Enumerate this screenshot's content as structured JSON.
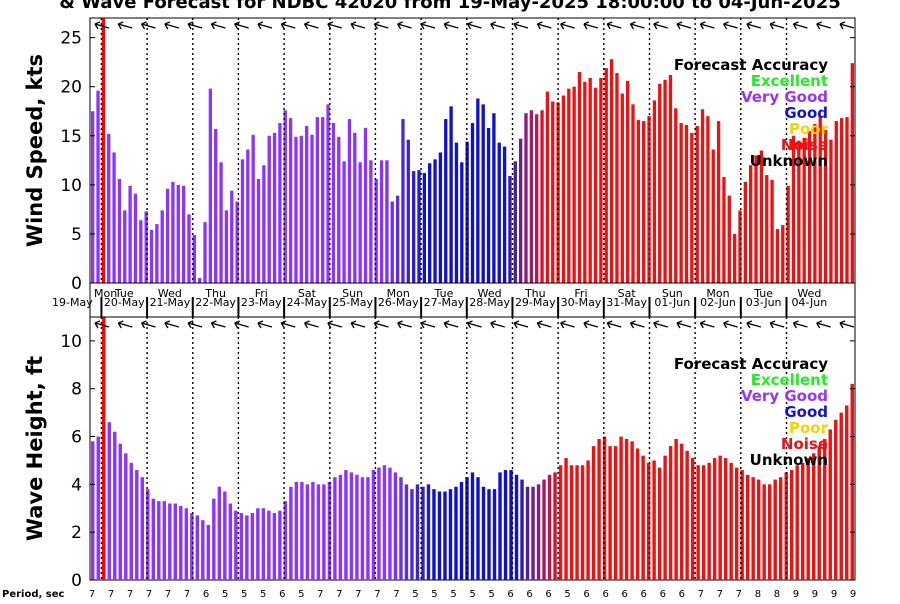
{
  "title": "& Wave Forecast for NDBC 42020 from 19-May-2025 18:00:00 to 04-Jun-2025",
  "day_labels": [
    {
      "dow": "Mon",
      "date": "19-May"
    },
    {
      "dow": "Tue",
      "date": "20-May"
    },
    {
      "dow": "Wed",
      "date": "21-May"
    },
    {
      "dow": "Thu",
      "date": "22-May"
    },
    {
      "dow": "Fri",
      "date": "23-May"
    },
    {
      "dow": "Sat",
      "date": "24-May"
    },
    {
      "dow": "Sun",
      "date": "25-May"
    },
    {
      "dow": "Mon",
      "date": "26-May"
    },
    {
      "dow": "Tue",
      "date": "27-May"
    },
    {
      "dow": "Wed",
      "date": "28-May"
    },
    {
      "dow": "Thu",
      "date": "29-May"
    },
    {
      "dow": "Fri",
      "date": "30-May"
    },
    {
      "dow": "Sat",
      "date": "31-May"
    },
    {
      "dow": "Sun",
      "date": "01-Jun"
    },
    {
      "dow": "Mon",
      "date": "02-Jun"
    },
    {
      "dow": "Tue",
      "date": "03-Jun"
    },
    {
      "dow": "Wed",
      "date": "04-Jun"
    }
  ],
  "legend": {
    "title": "Forecast Accuracy",
    "items": [
      {
        "label": "Excellent",
        "color": "#22ee22"
      },
      {
        "label": "Very Good",
        "color": "#9933ff"
      },
      {
        "label": "Good",
        "color": "#1111dd"
      },
      {
        "label": "Poor",
        "color": "#f2d500"
      },
      {
        "label": "Noise",
        "color": "#ee1111"
      },
      {
        "label": "Unknown",
        "color": "#000000"
      }
    ]
  },
  "period_label": "Period, sec",
  "periods": [
    7,
    7,
    7,
    7,
    7,
    7,
    6,
    5,
    5,
    5,
    6,
    5,
    7,
    7,
    7,
    7,
    7,
    5,
    5,
    5,
    5,
    5,
    6,
    6,
    6,
    5,
    6,
    6,
    6,
    6,
    6,
    6,
    7,
    7,
    7,
    8,
    8,
    9,
    9,
    9,
    9
  ],
  "chart_data": [
    {
      "type": "bar",
      "ylabel": "Wind Speed, kts",
      "ylim": [
        0,
        27
      ],
      "yticks": [
        0,
        5,
        10,
        15,
        20,
        25
      ],
      "grid": "vertical dotted lines at midnight",
      "values": [
        17.5,
        19.6,
        27,
        15.2,
        13.3,
        10.6,
        7.4,
        9.9,
        9.1,
        6.4,
        7.3,
        5.4,
        6.0,
        7.4,
        9.6,
        10.3,
        10.0,
        9.9,
        7.0,
        4.9,
        0.5,
        6.2,
        19.8,
        15.7,
        12.3,
        7.4,
        9.4,
        8.3,
        12.6,
        13.6,
        15.1,
        10.6,
        12.0,
        15.0,
        15.3,
        16.3,
        17.6,
        16.8,
        14.9,
        15.0,
        16.0,
        15.1,
        16.9,
        16.9,
        18.2,
        16.3,
        14.9,
        12.4,
        16.7,
        15.3,
        12.3,
        15.8,
        12.5,
        10.6,
        12.5,
        12.5,
        8.3,
        8.9,
        16.7,
        14.6,
        11.4,
        11.5,
        11.2,
        12.2,
        12.6,
        13.3,
        16.7,
        18.0,
        14.3,
        12.3,
        14.4,
        16.3,
        18.8,
        18.2,
        15.8,
        17.3,
        14.3,
        13.9,
        10.9,
        12.4,
        14.7,
        17.3,
        17.6,
        17.2,
        17.6,
        19.5,
        18.5,
        18.4,
        19.1,
        19.8,
        20.0,
        21.5,
        20.5,
        20.9,
        19.9,
        20.9,
        21.9,
        22.8,
        21.4,
        19.3,
        20.6,
        18.2,
        16.6,
        16.5,
        17.0,
        18.6,
        20.3,
        20.7,
        21.2,
        17.8,
        16.3,
        16.1,
        15.3,
        16.0,
        17.7,
        17.0,
        13.6,
        16.5,
        10.8,
        8.9,
        5.0,
        7.4,
        10.3,
        12.0,
        13.0,
        13.5,
        11.0,
        10.5,
        5.5,
        5.9,
        9.9,
        15.0,
        14.5,
        14.8,
        15.5,
        16.2,
        17.0,
        15.6,
        14.6,
        16.5,
        16.8,
        16.9,
        22.4
      ],
      "colors": [
        "#8b33ff",
        "#8b33ff",
        "#ff0000",
        "#8b33ff",
        "#8b33ff",
        "#8b33ff",
        "#8b33ff",
        "#8b33ff",
        "#8b33ff",
        "#8b33ff",
        "#8b33ff",
        "#8b33ff",
        "#8b33ff",
        "#8b33ff",
        "#8b33ff",
        "#8b33ff",
        "#8b33ff",
        "#8b33ff",
        "#8b33ff",
        "#8b33ff",
        "#8b33ff",
        "#8b33ff",
        "#8b33ff",
        "#8b33ff",
        "#8b33ff",
        "#8b33ff",
        "#8b33ff",
        "#8b33ff",
        "#8b33ff",
        "#8b33ff",
        "#8b33ff",
        "#8b33ff",
        "#8b33ff",
        "#8b33ff",
        "#8b33ff",
        "#8b33ff",
        "#8b33ff",
        "#8b33ff",
        "#8b33ff",
        "#8b33ff",
        "#8b33ff",
        "#8b33ff",
        "#8b33ff",
        "#8b33ff",
        "#8b33ff",
        "#8b33ff",
        "#8b33ff",
        "#8b33ff",
        "#8b33ff",
        "#8b33ff",
        "#8b33ff",
        "#8b33ff",
        "#8b33ff",
        "#8b33ff",
        "#8b33ff",
        "#7a33ff",
        "#6b30f5",
        "#5c2ce8",
        "#4d28dc",
        "#3e24d0",
        "#2f20c4",
        "#1f1dbf",
        "#1111cc",
        "#1111cc",
        "#1111cc",
        "#1111cc",
        "#1111cc",
        "#1111cc",
        "#1111cc",
        "#1111cc",
        "#1111cc",
        "#1111cc",
        "#1111cc",
        "#1111cc",
        "#1111cc",
        "#1111cc",
        "#1111cc",
        "#1111cc",
        "#2d1ab0",
        "#4a1fa0",
        "#6a1f90",
        "#8a1c78",
        "#a81860",
        "#c01448",
        "#d81030",
        "#ee1111",
        "#ee1111",
        "#ee1111",
        "#ee1111",
        "#ee1111",
        "#ee1111",
        "#ee1111",
        "#ee1111",
        "#ee1111",
        "#ee1111",
        "#ee1111",
        "#ee1111",
        "#ee1111",
        "#ee1111",
        "#ee1111",
        "#ee1111",
        "#ee1111",
        "#ee1111",
        "#ee1111",
        "#ee1111",
        "#ee1111",
        "#ee1111",
        "#ee1111",
        "#ee1111",
        "#ee1111",
        "#ee1111",
        "#ee1111",
        "#ee1111",
        "#ee1111",
        "#ee1111",
        "#ee1111",
        "#ee1111",
        "#ee1111",
        "#ee1111",
        "#ee1111",
        "#ee1111",
        "#ee1111",
        "#ee1111",
        "#ee1111",
        "#ee1111",
        "#ee1111",
        "#ee1111",
        "#ee1111",
        "#ee1111",
        "#ee1111",
        "#ee1111",
        "#ee1111",
        "#ee1111",
        "#ee1111",
        "#ee1111",
        "#ee1111",
        "#ee1111",
        "#ee1111",
        "#ee1111",
        "#ee1111",
        "#ee1111",
        "#ee1111",
        "#ee1111"
      ]
    },
    {
      "type": "bar",
      "ylabel": "Wave Height, ft",
      "ylim": [
        0,
        11
      ],
      "yticks": [
        0,
        2,
        4,
        6,
        8,
        10
      ],
      "grid": "vertical dotted lines at midnight",
      "values": [
        5.8,
        6.0,
        11,
        6.6,
        6.2,
        5.7,
        5.3,
        4.9,
        4.6,
        4.3,
        3.8,
        3.4,
        3.3,
        3.3,
        3.2,
        3.2,
        3.1,
        3.0,
        2.8,
        2.7,
        2.5,
        2.3,
        3.4,
        3.9,
        3.7,
        3.2,
        2.9,
        2.8,
        2.7,
        2.8,
        3.0,
        3.0,
        2.9,
        2.8,
        2.9,
        3.3,
        3.9,
        4.1,
        4.1,
        4.0,
        4.1,
        4.0,
        4.0,
        4.1,
        4.3,
        4.4,
        4.6,
        4.5,
        4.4,
        4.3,
        4.3,
        4.6,
        4.7,
        4.8,
        4.7,
        4.5,
        4.3,
        4.0,
        3.8,
        4.0,
        3.9,
        4.0,
        3.8,
        3.7,
        3.7,
        3.8,
        3.9,
        4.1,
        4.3,
        4.5,
        4.3,
        3.9,
        3.8,
        3.8,
        4.5,
        4.6,
        4.6,
        4.4,
        4.2,
        3.9,
        3.9,
        4.0,
        4.2,
        4.4,
        4.5,
        4.8,
        5.1,
        4.8,
        4.8,
        4.8,
        5.0,
        5.6,
        5.9,
        6.0,
        5.6,
        5.6,
        6.0,
        5.9,
        5.8,
        5.5,
        5.2,
        4.9,
        5.0,
        4.7,
        5.2,
        5.6,
        5.9,
        5.7,
        5.4,
        5.1,
        4.8,
        4.8,
        4.9,
        5.1,
        5.2,
        5.1,
        4.9,
        4.7,
        4.6,
        4.4,
        4.3,
        4.2,
        4.0,
        4.0,
        4.2,
        4.3,
        4.5,
        4.6,
        4.8,
        4.9,
        5.1,
        5.3,
        5.6,
        5.9,
        6.3,
        6.7,
        7.0,
        7.3,
        8.2
      ]
    }
  ]
}
